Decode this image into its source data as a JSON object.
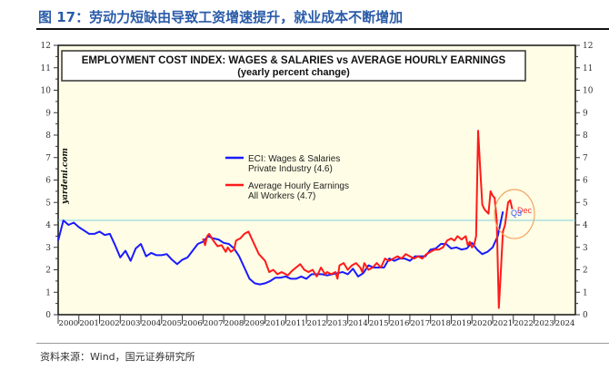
{
  "figure_title": "图 17：劳动力短缺由导致工资增速提升，就业成本不断增加",
  "source": "资料来源：Wind，国元证券研究所",
  "chart_data": {
    "type": "line",
    "title": "EMPLOYMENT COST INDEX: WAGES & SALARIES vs AVERAGE HOURLY EARNINGS",
    "subtitle": "(yearly percent change)",
    "watermark": "yardeni.com",
    "xlim": [
      2000,
      2025
    ],
    "ylim": [
      0,
      12
    ],
    "y_ticks": [
      0,
      1,
      2,
      3,
      4,
      5,
      6,
      7,
      8,
      9,
      10,
      11,
      12
    ],
    "x_tick_labels": [
      "2000",
      "2001",
      "2002",
      "2003",
      "2004",
      "2005",
      "2006",
      "2007",
      "2008",
      "2009",
      "2010",
      "2011",
      "2012",
      "2013",
      "2014",
      "2015",
      "2016",
      "2017",
      "2018",
      "2019",
      "2020",
      "2021",
      "2022",
      "2023",
      "2024"
    ],
    "reference_line": 4.2,
    "legend_placement": "center-left",
    "background": "#fffde6",
    "series": [
      {
        "name": "ECI: Wages & Salaries",
        "name_line2": "Private Industry (4.6)",
        "color": "#1a1aff",
        "points": [
          [
            2000,
            3.3
          ],
          [
            2000.25,
            4.2
          ],
          [
            2000.5,
            4.0
          ],
          [
            2000.75,
            4.1
          ],
          [
            2001,
            3.9
          ],
          [
            2001.25,
            3.75
          ],
          [
            2001.5,
            3.6
          ],
          [
            2001.75,
            3.6
          ],
          [
            2002,
            3.7
          ],
          [
            2002.25,
            3.55
          ],
          [
            2002.5,
            3.6
          ],
          [
            2002.75,
            3.1
          ],
          [
            2003,
            2.55
          ],
          [
            2003.25,
            2.85
          ],
          [
            2003.5,
            2.4
          ],
          [
            2003.75,
            2.95
          ],
          [
            2004,
            3.15
          ],
          [
            2004.25,
            2.6
          ],
          [
            2004.5,
            2.75
          ],
          [
            2004.75,
            2.65
          ],
          [
            2005,
            2.65
          ],
          [
            2005.25,
            2.7
          ],
          [
            2005.5,
            2.45
          ],
          [
            2005.75,
            2.25
          ],
          [
            2006,
            2.45
          ],
          [
            2006.25,
            2.55
          ],
          [
            2006.5,
            2.85
          ],
          [
            2006.75,
            3.15
          ],
          [
            2007,
            3.25
          ],
          [
            2007.25,
            3.5
          ],
          [
            2007.5,
            3.4
          ],
          [
            2007.75,
            3.35
          ],
          [
            2008,
            3.2
          ],
          [
            2008.25,
            3.15
          ],
          [
            2008.5,
            2.95
          ],
          [
            2008.75,
            2.6
          ],
          [
            2009,
            2.1
          ],
          [
            2009.25,
            1.6
          ],
          [
            2009.5,
            1.4
          ],
          [
            2009.75,
            1.35
          ],
          [
            2010,
            1.4
          ],
          [
            2010.25,
            1.5
          ],
          [
            2010.5,
            1.65
          ],
          [
            2010.75,
            1.65
          ],
          [
            2011,
            1.7
          ],
          [
            2011.25,
            1.6
          ],
          [
            2011.5,
            1.6
          ],
          [
            2011.75,
            1.7
          ],
          [
            2012,
            1.6
          ],
          [
            2012.25,
            1.8
          ],
          [
            2012.5,
            1.8
          ],
          [
            2012.75,
            1.8
          ],
          [
            2013,
            1.75
          ],
          [
            2013.25,
            1.8
          ],
          [
            2013.5,
            1.85
          ],
          [
            2013.75,
            1.9
          ],
          [
            2014,
            1.8
          ],
          [
            2014.25,
            2.05
          ],
          [
            2014.5,
            1.7
          ],
          [
            2014.75,
            1.85
          ],
          [
            2015,
            2.2
          ],
          [
            2015.25,
            2.1
          ],
          [
            2015.5,
            2.1
          ],
          [
            2015.75,
            2.1
          ],
          [
            2016,
            2.5
          ],
          [
            2016.25,
            2.4
          ],
          [
            2016.5,
            2.5
          ],
          [
            2016.75,
            2.5
          ],
          [
            2017,
            2.4
          ],
          [
            2017.25,
            2.6
          ],
          [
            2017.5,
            2.6
          ],
          [
            2017.75,
            2.6
          ],
          [
            2018,
            2.9
          ],
          [
            2018.25,
            2.95
          ],
          [
            2018.5,
            3.15
          ],
          [
            2018.75,
            3.15
          ],
          [
            2019,
            2.95
          ],
          [
            2019.25,
            3.0
          ],
          [
            2019.5,
            2.9
          ],
          [
            2019.75,
            2.95
          ],
          [
            2020,
            3.2
          ],
          [
            2020.25,
            2.9
          ],
          [
            2020.5,
            2.7
          ],
          [
            2020.75,
            2.8
          ],
          [
            2021,
            3.0
          ],
          [
            2021.25,
            3.5
          ],
          [
            2021.5,
            4.6
          ]
        ]
      },
      {
        "name": "Average Hourly Earnings",
        "name_line2": "All Workers (4.7)",
        "color": "#ff1a1a",
        "points": [
          [
            2007,
            3.4
          ],
          [
            2007.1,
            3.1
          ],
          [
            2007.2,
            3.5
          ],
          [
            2007.3,
            3.6
          ],
          [
            2007.5,
            3.3
          ],
          [
            2007.7,
            3.05
          ],
          [
            2007.9,
            3.1
          ],
          [
            2008.1,
            2.8
          ],
          [
            2008.2,
            3.0
          ],
          [
            2008.35,
            2.8
          ],
          [
            2008.5,
            2.9
          ],
          [
            2008.6,
            3.3
          ],
          [
            2008.8,
            3.4
          ],
          [
            2009,
            3.6
          ],
          [
            2009.2,
            3.7
          ],
          [
            2009.35,
            3.4
          ],
          [
            2009.5,
            3.1
          ],
          [
            2009.7,
            2.7
          ],
          [
            2009.9,
            2.5
          ],
          [
            2010,
            2.4
          ],
          [
            2010.2,
            1.9
          ],
          [
            2010.4,
            2.0
          ],
          [
            2010.6,
            1.8
          ],
          [
            2010.8,
            1.9
          ],
          [
            2011,
            1.8
          ],
          [
            2011.1,
            1.75
          ],
          [
            2011.3,
            1.95
          ],
          [
            2011.5,
            2.1
          ],
          [
            2011.7,
            2.25
          ],
          [
            2011.9,
            2.0
          ],
          [
            2012.1,
            1.9
          ],
          [
            2012.3,
            2.0
          ],
          [
            2012.5,
            1.7
          ],
          [
            2012.7,
            2.1
          ],
          [
            2012.9,
            1.8
          ],
          [
            2013,
            1.9
          ],
          [
            2013.2,
            1.8
          ],
          [
            2013.4,
            1.9
          ],
          [
            2013.5,
            1.6
          ],
          [
            2013.6,
            2.2
          ],
          [
            2013.8,
            2.3
          ],
          [
            2014,
            2.0
          ],
          [
            2014.2,
            2.2
          ],
          [
            2014.4,
            2.3
          ],
          [
            2014.6,
            2.1
          ],
          [
            2014.7,
            1.9
          ],
          [
            2014.8,
            2.3
          ],
          [
            2015,
            2.0
          ],
          [
            2015.2,
            2.1
          ],
          [
            2015.4,
            2.3
          ],
          [
            2015.6,
            2.1
          ],
          [
            2015.8,
            2.5
          ],
          [
            2016,
            2.4
          ],
          [
            2016.2,
            2.5
          ],
          [
            2016.4,
            2.6
          ],
          [
            2016.6,
            2.5
          ],
          [
            2016.8,
            2.7
          ],
          [
            2017,
            2.6
          ],
          [
            2017.2,
            2.5
          ],
          [
            2017.4,
            2.6
          ],
          [
            2017.6,
            2.5
          ],
          [
            2017.8,
            2.7
          ],
          [
            2018,
            2.8
          ],
          [
            2018.2,
            2.9
          ],
          [
            2018.4,
            2.9
          ],
          [
            2018.6,
            3.0
          ],
          [
            2018.8,
            3.3
          ],
          [
            2019,
            3.4
          ],
          [
            2019.15,
            3.3
          ],
          [
            2019.3,
            3.5
          ],
          [
            2019.5,
            3.35
          ],
          [
            2019.7,
            3.5
          ],
          [
            2019.8,
            3.1
          ],
          [
            2019.9,
            3.25
          ],
          [
            2020,
            3.0
          ],
          [
            2020.1,
            3.1
          ],
          [
            2020.2,
            3.5
          ],
          [
            2020.3,
            8.2
          ],
          [
            2020.4,
            6.5
          ],
          [
            2020.5,
            4.9
          ],
          [
            2020.6,
            4.7
          ],
          [
            2020.7,
            4.6
          ],
          [
            2020.8,
            4.5
          ],
          [
            2020.9,
            5.5
          ],
          [
            2021,
            5.3
          ],
          [
            2021.1,
            5.2
          ],
          [
            2021.2,
            4.2
          ],
          [
            2021.3,
            0.3
          ],
          [
            2021.4,
            2.0
          ],
          [
            2021.5,
            3.7
          ],
          [
            2021.6,
            4.0
          ],
          [
            2021.75,
            5.0
          ],
          [
            2021.85,
            5.1
          ],
          [
            2021.95,
            4.7
          ]
        ]
      }
    ],
    "annotations": [
      {
        "text": "Dec",
        "color": "#ff3333"
      },
      {
        "text": "Q3",
        "color": "#3355ff"
      }
    ],
    "highlight_circle_color": "#f4a460"
  }
}
